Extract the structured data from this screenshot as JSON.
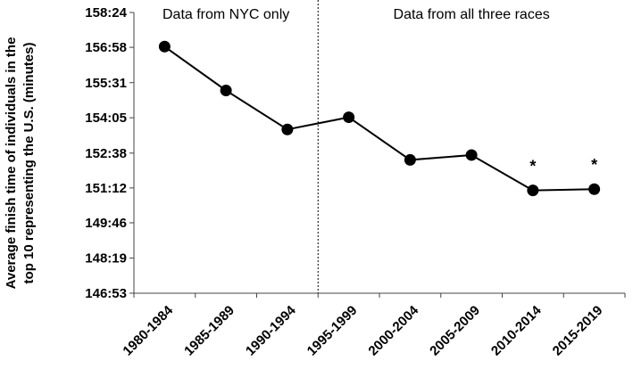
{
  "chart_data": {
    "type": "line",
    "ylabel_lines": [
      "Average finish time of individuals in the",
      "top 10 representing the U.S. (minutes)"
    ],
    "y_tick_labels": [
      "146:53",
      "148:19",
      "149:46",
      "151:12",
      "152:38",
      "154:05",
      "155:31",
      "156:58",
      "158:24"
    ],
    "y_ticks_minutes": [
      146.88,
      148.32,
      149.77,
      151.2,
      152.63,
      154.08,
      155.52,
      156.97,
      158.4
    ],
    "ylim": [
      146.88,
      158.4
    ],
    "categories": [
      "1980-1984",
      "1985-1989",
      "1990-1994",
      "1995-1999",
      "2000-2004",
      "2005-2009",
      "2010-2014",
      "2015-2019"
    ],
    "series": [
      {
        "values": [
          157.0,
          155.2,
          153.6,
          154.1,
          152.35,
          152.55,
          151.1,
          151.15
        ]
      }
    ],
    "regions": [
      {
        "label": "Data from NYC only",
        "from_category": 0,
        "to_category": 2
      },
      {
        "label": "Data from all three races",
        "from_category": 3,
        "to_category": 7
      }
    ],
    "divider_between": [
      2,
      3
    ],
    "annotations": [
      {
        "text": "*",
        "category_index": 6
      },
      {
        "text": "*",
        "category_index": 7
      }
    ],
    "grid": false,
    "legend": "none",
    "line_color": "#000000",
    "marker_color": "#000000"
  }
}
